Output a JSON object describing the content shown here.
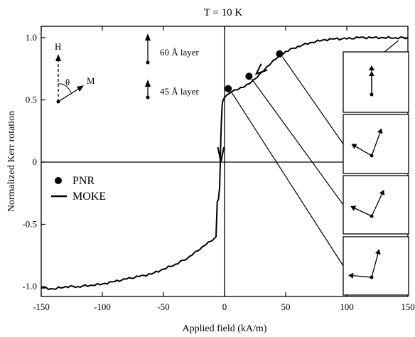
{
  "chart_data": {
    "type": "line",
    "title": "T = 10 K",
    "xlabel": "Applied field (kA/m)",
    "ylabel": "Normalized Kerr rotation",
    "xlim": [
      -150,
      150
    ],
    "ylim": [
      -1.1,
      1.1
    ],
    "x_ticks": [
      -150,
      -100,
      -50,
      0,
      50,
      100,
      150
    ],
    "y_ticks": [
      -1.0,
      -0.5,
      0,
      0.5,
      1.0
    ],
    "x_tick_labels": [
      "-150",
      "-100",
      "-50",
      "0",
      "50",
      "100",
      "150"
    ],
    "y_tick_labels": [
      "-1.0",
      "-0.5",
      "0",
      "0.5",
      "1.0"
    ],
    "grid": false,
    "legend": {
      "placement": "left-middle",
      "entries": [
        "PNR",
        "MOKE"
      ]
    },
    "series": [
      {
        "name": "MOKE",
        "style": "line",
        "x": [
          -150,
          -140,
          -130,
          -120,
          -110,
          -100,
          -90,
          -80,
          -70,
          -60,
          -50,
          -40,
          -30,
          -25,
          -20,
          -15,
          -10,
          -7,
          -6,
          -5,
          -4,
          -3.5,
          -3,
          -2.5,
          -2,
          -1.5,
          -1,
          0,
          2,
          5,
          10,
          15,
          20,
          25,
          30,
          35,
          40,
          45,
          50,
          60,
          70,
          80,
          90,
          100,
          110,
          120,
          130,
          140,
          150
        ],
        "y": [
          -1.01,
          -1.02,
          -1.0,
          -1.0,
          -0.99,
          -0.98,
          -0.96,
          -0.94,
          -0.92,
          -0.9,
          -0.86,
          -0.82,
          -0.77,
          -0.73,
          -0.7,
          -0.66,
          -0.63,
          -0.6,
          -0.32,
          -0.3,
          -0.2,
          0.0,
          0.2,
          0.35,
          0.45,
          0.49,
          0.5,
          0.52,
          0.54,
          0.56,
          0.58,
          0.6,
          0.63,
          0.67,
          0.72,
          0.77,
          0.82,
          0.86,
          0.89,
          0.93,
          0.96,
          0.98,
          0.99,
          0.99,
          1.0,
          1.0,
          1.0,
          1.0,
          1.0
        ]
      },
      {
        "name": "PNR",
        "style": "points",
        "x": [
          3,
          20,
          45
        ],
        "y": [
          0.59,
          0.69,
          0.87
        ]
      }
    ],
    "annotations": {
      "vector_key": {
        "field_label": "H",
        "angle_label": "θ",
        "moment_label": "M"
      },
      "layer_key": [
        {
          "label": "60 Å layer",
          "arrows": 1
        },
        {
          "label": "45 Å layer",
          "arrows": 1
        }
      ],
      "insets": [
        {
          "field": 140,
          "theta_60_deg": 0,
          "theta_45_deg": 0
        },
        {
          "field": 45,
          "theta_60_deg": 20,
          "theta_45_deg": -60
        },
        {
          "field": 20,
          "theta_60_deg": 25,
          "theta_45_deg": -65
        },
        {
          "field": 3,
          "theta_60_deg": 15,
          "theta_45_deg": -85
        }
      ]
    }
  }
}
